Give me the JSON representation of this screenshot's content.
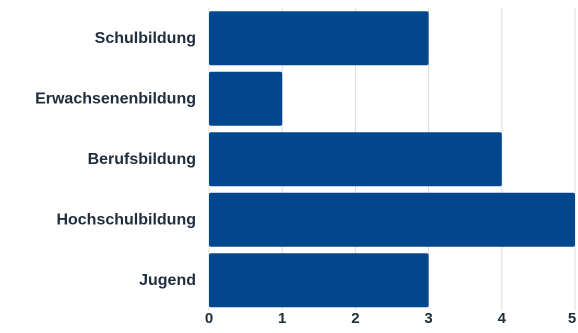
{
  "colors": {
    "bar": "#02478e",
    "grid": "#dcdcdc",
    "text": "#1f2d3d"
  },
  "chart_data": {
    "type": "bar",
    "orientation": "horizontal",
    "categories": [
      "Schulbildung",
      "Erwachsenenbildung",
      "Berufsbildung",
      "Hochschulbildung",
      "Jugend"
    ],
    "values": [
      3,
      1,
      4,
      5,
      3
    ],
    "title": "",
    "xlabel": "",
    "ylabel": "",
    "xlim": [
      0,
      5
    ],
    "x_ticks": [
      "0",
      "1",
      "2",
      "3",
      "4",
      "5"
    ],
    "grid": "vertical",
    "legend": "none"
  }
}
